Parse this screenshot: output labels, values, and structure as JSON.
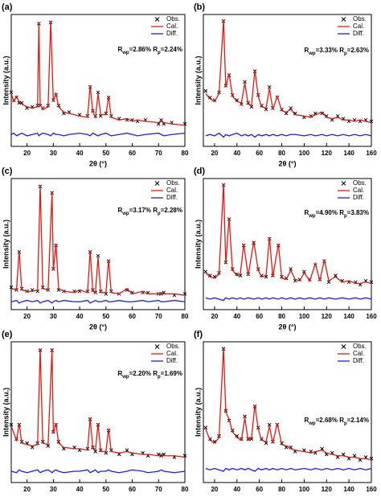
{
  "chart_data": [
    {
      "type": "line",
      "panel_label": "(a)",
      "xlabel": "2θ (°)",
      "ylabel": "Intensity (a.u.)",
      "xlim": [
        14,
        80
      ],
      "xticks": [
        20,
        30,
        40,
        50,
        60,
        70,
        80
      ],
      "ylim": [
        0,
        100
      ],
      "annotation": [
        {
          "text": "R"
        },
        {
          "text": "wp",
          "sub": true
        },
        {
          "text": "=2.86% "
        },
        {
          "text": "R"
        },
        {
          "text": "p",
          "sub": true
        },
        {
          "text": "=2.24%"
        }
      ],
      "x": [
        14,
        15,
        16,
        17,
        18,
        20,
        22,
        24,
        24.5,
        25,
        26,
        28,
        29,
        30,
        31,
        32,
        34,
        36,
        40,
        43,
        44,
        45,
        46,
        47,
        48,
        50,
        51,
        52,
        55,
        58,
        60,
        62,
        65,
        70,
        71,
        72,
        75,
        80
      ],
      "series": [
        {
          "name": "Obs.",
          "color": "#000000",
          "marker": "x",
          "values": [
            41,
            35,
            37,
            33,
            33,
            29,
            30,
            31,
            93,
            31,
            29,
            31,
            94,
            35,
            39,
            31,
            25,
            26,
            24,
            23,
            45,
            27,
            23,
            41,
            23,
            25,
            37,
            23,
            21,
            20,
            20,
            19,
            20,
            17,
            20,
            17,
            18,
            17
          ]
        },
        {
          "name": "Cal.",
          "color": "#e8180f",
          "values": [
            40,
            34,
            38,
            34,
            32,
            30,
            29,
            30,
            94,
            32,
            28,
            30,
            95,
            34,
            40,
            30,
            26,
            25,
            23,
            22,
            46,
            26,
            22,
            40,
            24,
            24,
            38,
            22,
            20,
            21,
            19,
            20,
            19,
            18,
            19,
            18,
            17,
            16
          ]
        },
        {
          "name": "Diff.",
          "color": "#1a1aff",
          "values": [
            9,
            10,
            8,
            9,
            10,
            8,
            9,
            10,
            8,
            9,
            10,
            9,
            8,
            10,
            9,
            9,
            8,
            9,
            10,
            9,
            8,
            10,
            9,
            8,
            9,
            10,
            9,
            8,
            9,
            10,
            9,
            8,
            9,
            10,
            9,
            8,
            9,
            10
          ]
        }
      ]
    },
    {
      "type": "line",
      "panel_label": "(b)",
      "xlabel": "2θ (°)",
      "ylabel": "Intensity (a.u.)",
      "xlim": [
        10,
        160
      ],
      "xticks": [
        20,
        40,
        60,
        80,
        100,
        120,
        140,
        160
      ],
      "ylim": [
        0,
        100
      ],
      "annotation": [
        {
          "text": "R"
        },
        {
          "text": "wp",
          "sub": true
        },
        {
          "text": "=3.33% "
        },
        {
          "text": "R"
        },
        {
          "text": "p",
          "sub": true
        },
        {
          "text": "=2.63%"
        }
      ],
      "x": [
        12,
        16,
        20,
        24,
        28,
        30,
        33,
        36,
        40,
        44,
        47,
        50,
        53,
        56,
        59,
        62,
        66,
        69,
        72,
        76,
        80,
        84,
        88,
        92,
        100,
        106,
        110,
        116,
        120,
        125,
        130,
        135,
        140,
        145,
        150,
        155,
        160
      ],
      "series": [
        {
          "name": "Obs.",
          "color": "#000000",
          "marker": "x",
          "values": [
            42,
            37,
            35,
            41,
            95,
            46,
            54,
            39,
            35,
            32,
            49,
            33,
            30,
            57,
            39,
            31,
            28,
            45,
            29,
            37,
            28,
            25,
            29,
            25,
            22,
            23,
            25,
            25,
            23,
            20,
            23,
            21,
            19,
            20,
            19,
            20,
            19
          ]
        },
        {
          "name": "Cal.",
          "color": "#e8180f",
          "values": [
            40,
            36,
            34,
            40,
            96,
            45,
            55,
            38,
            34,
            33,
            48,
            32,
            31,
            58,
            38,
            30,
            29,
            44,
            28,
            38,
            27,
            26,
            28,
            24,
            23,
            22,
            24,
            26,
            22,
            21,
            22,
            20,
            20,
            19,
            20,
            19,
            18
          ]
        },
        {
          "name": "Diff.",
          "color": "#1a1aff",
          "values": [
            8,
            9,
            8,
            10,
            7,
            9,
            8,
            9,
            10,
            8,
            9,
            8,
            9,
            7,
            9,
            8,
            9,
            8,
            9,
            8,
            9,
            8,
            9,
            9,
            8,
            9,
            8,
            9,
            8,
            9,
            8,
            9,
            8,
            9,
            8,
            9,
            8
          ]
        }
      ]
    },
    {
      "type": "line",
      "panel_label": "(c)",
      "xlabel": "2θ (°)",
      "ylabel": "Intensity (a.u.)",
      "xlim": [
        14,
        80
      ],
      "xticks": [
        20,
        30,
        40,
        50,
        60,
        70,
        80
      ],
      "ylim": [
        0,
        100
      ],
      "annotation": [
        {
          "text": "R"
        },
        {
          "text": "wp",
          "sub": true
        },
        {
          "text": "=3.17% "
        },
        {
          "text": "R"
        },
        {
          "text": "p",
          "sub": true
        },
        {
          "text": "=2.28%"
        }
      ],
      "x": [
        14,
        16,
        17,
        18,
        20,
        22,
        24,
        25,
        26,
        28,
        29.5,
        30,
        31,
        32,
        34,
        38,
        40,
        43,
        44,
        45,
        46,
        47,
        48,
        50,
        51,
        52,
        55,
        58,
        60,
        64,
        66,
        70,
        71,
        72,
        76,
        80
      ],
      "series": [
        {
          "name": "Obs.",
          "color": "#000000",
          "marker": "x",
          "values": [
            17,
            15,
            44,
            16,
            14,
            15,
            14,
            94,
            17,
            15,
            89,
            31,
            49,
            15,
            14,
            14,
            14,
            14,
            44,
            15,
            13,
            41,
            14,
            12,
            37,
            14,
            12,
            15,
            13,
            13,
            13,
            12,
            12,
            13,
            11,
            12
          ]
        },
        {
          "name": "Cal.",
          "color": "#e8180f",
          "values": [
            16,
            15,
            45,
            15,
            14,
            14,
            15,
            95,
            16,
            15,
            90,
            30,
            50,
            16,
            14,
            13,
            15,
            13,
            45,
            14,
            13,
            40,
            13,
            13,
            38,
            13,
            12,
            16,
            12,
            14,
            12,
            12,
            13,
            12,
            12,
            11
          ]
        },
        {
          "name": "Diff.",
          "color": "#1a1aff",
          "values": [
            6,
            7,
            5,
            6,
            7,
            6,
            7,
            5,
            6,
            7,
            5,
            6,
            7,
            6,
            7,
            6,
            6,
            7,
            5,
            6,
            7,
            6,
            6,
            7,
            6,
            6,
            7,
            6,
            6,
            7,
            6,
            7,
            6,
            6,
            7,
            6
          ]
        }
      ]
    },
    {
      "type": "line",
      "panel_label": "(d)",
      "xlabel": "2θ (°)",
      "ylabel": "Intensity (a.u.)",
      "xlim": [
        10,
        160
      ],
      "xticks": [
        20,
        40,
        60,
        80,
        100,
        120,
        140,
        160
      ],
      "ylim": [
        0,
        100
      ],
      "annotation": [
        {
          "text": "R"
        },
        {
          "text": "wp",
          "sub": true
        },
        {
          "text": "=4.90% "
        },
        {
          "text": "R"
        },
        {
          "text": "p",
          "sub": true
        },
        {
          "text": "=3.83%"
        }
      ],
      "x": [
        12,
        16,
        20,
        24,
        28,
        30,
        33,
        36,
        40,
        43,
        46,
        50,
        55,
        59,
        62,
        66,
        69,
        72,
        77,
        80,
        84,
        88,
        92,
        96,
        100,
        105,
        110,
        114,
        118,
        122,
        128,
        134,
        140,
        146,
        150,
        155,
        160
      ],
      "series": [
        {
          "name": "Obs.",
          "color": "#000000",
          "marker": "x",
          "values": [
            29,
            26,
            25,
            28,
            95,
            36,
            69,
            31,
            27,
            26,
            49,
            27,
            51,
            31,
            26,
            25,
            54,
            26,
            49,
            25,
            24,
            31,
            22,
            23,
            29,
            23,
            34,
            23,
            37,
            21,
            26,
            22,
            21,
            21,
            19,
            22,
            21
          ]
        },
        {
          "name": "Cal.",
          "color": "#e8180f",
          "values": [
            28,
            25,
            24,
            27,
            96,
            35,
            70,
            30,
            26,
            27,
            50,
            26,
            52,
            30,
            25,
            26,
            55,
            25,
            50,
            24,
            23,
            30,
            23,
            22,
            28,
            22,
            35,
            22,
            38,
            22,
            25,
            21,
            22,
            20,
            20,
            21,
            20
          ]
        },
        {
          "name": "Diff.",
          "color": "#1a1aff",
          "values": [
            9,
            8,
            9,
            8,
            7,
            9,
            8,
            9,
            8,
            9,
            8,
            9,
            8,
            9,
            8,
            9,
            8,
            9,
            8,
            9,
            8,
            9,
            8,
            9,
            8,
            9,
            8,
            9,
            8,
            9,
            8,
            9,
            8,
            9,
            8,
            9,
            8
          ]
        }
      ]
    },
    {
      "type": "line",
      "panel_label": "(e)",
      "xlabel": "2θ (°)",
      "ylabel": "Intensity (a.u.)",
      "xlim": [
        14,
        80
      ],
      "xticks": [
        20,
        30,
        40,
        50,
        60,
        70,
        80
      ],
      "ylim": [
        0,
        100
      ],
      "annotation": [
        {
          "text": "R"
        },
        {
          "text": "wp",
          "sub": true
        },
        {
          "text": "=2.20% "
        },
        {
          "text": "R"
        },
        {
          "text": "p",
          "sub": true
        },
        {
          "text": "=1.69%"
        }
      ],
      "x": [
        14,
        16,
        17,
        18,
        20,
        22,
        24,
        25,
        26,
        28,
        29.5,
        30,
        31,
        32,
        34,
        38,
        40,
        43,
        44,
        45,
        46,
        47,
        48,
        50,
        51,
        52,
        55,
        58,
        60,
        64,
        66,
        70,
        71,
        72,
        76,
        80
      ],
      "series": [
        {
          "name": "Obs.",
          "color": "#000000",
          "marker": "x",
          "values": [
            41,
            31,
            41,
            29,
            28,
            25,
            28,
            94,
            29,
            26,
            94,
            36,
            41,
            29,
            24,
            25,
            23,
            24,
            45,
            25,
            22,
            41,
            23,
            21,
            37,
            23,
            20,
            23,
            20,
            21,
            19,
            20,
            19,
            20,
            18,
            19
          ]
        },
        {
          "name": "Cal.",
          "color": "#e8180f",
          "values": [
            40,
            30,
            42,
            28,
            27,
            26,
            27,
            95,
            28,
            27,
            95,
            35,
            42,
            28,
            25,
            24,
            24,
            23,
            46,
            24,
            23,
            42,
            22,
            22,
            38,
            22,
            21,
            22,
            21,
            20,
            20,
            19,
            20,
            19,
            19,
            18
          ]
        },
        {
          "name": "Diff.",
          "color": "#1a1aff",
          "values": [
            8,
            7,
            9,
            8,
            7,
            8,
            9,
            7,
            8,
            9,
            7,
            8,
            9,
            8,
            7,
            8,
            8,
            9,
            7,
            8,
            9,
            7,
            8,
            8,
            9,
            8,
            7,
            8,
            9,
            8,
            7,
            8,
            9,
            8,
            7,
            8
          ]
        }
      ]
    },
    {
      "type": "line",
      "panel_label": "(f)",
      "xlabel": "2θ (°)",
      "ylabel": "Intensity (a.u.)",
      "xlim": [
        10,
        160
      ],
      "xticks": [
        20,
        40,
        60,
        80,
        100,
        120,
        140,
        160
      ],
      "ylim": [
        0,
        100
      ],
      "annotation": [
        {
          "text": "R"
        },
        {
          "text": "wp",
          "sub": true
        },
        {
          "text": "=2.68% "
        },
        {
          "text": "R"
        },
        {
          "text": "p",
          "sub": true
        },
        {
          "text": "=2.14%"
        }
      ],
      "x": [
        12,
        16,
        20,
        24,
        28,
        30,
        33,
        36,
        40,
        44,
        47,
        50,
        53,
        56,
        59,
        62,
        66,
        69,
        72,
        76,
        80,
        84,
        88,
        92,
        100,
        106,
        110,
        116,
        120,
        125,
        130,
        135,
        140,
        145,
        150,
        155,
        160
      ],
      "series": [
        {
          "name": "Obs.",
          "color": "#000000",
          "marker": "x",
          "values": [
            39,
            31,
            29,
            33,
            95,
            51,
            44,
            37,
            33,
            31,
            47,
            31,
            31,
            54,
            39,
            31,
            28,
            41,
            29,
            41,
            28,
            25,
            25,
            22,
            23,
            22,
            21,
            24,
            20,
            21,
            18,
            20,
            17,
            19,
            16,
            18,
            17
          ]
        },
        {
          "name": "Cal.",
          "color": "#e8180f",
          "values": [
            38,
            30,
            28,
            32,
            96,
            50,
            45,
            36,
            32,
            30,
            46,
            30,
            32,
            55,
            38,
            30,
            29,
            40,
            28,
            42,
            27,
            26,
            24,
            23,
            22,
            21,
            22,
            23,
            21,
            20,
            19,
            19,
            18,
            18,
            17,
            17,
            16
          ]
        },
        {
          "name": "Diff.",
          "color": "#1a1aff",
          "values": [
            10,
            9,
            10,
            9,
            8,
            10,
            9,
            10,
            9,
            10,
            9,
            10,
            9,
            8,
            10,
            9,
            10,
            9,
            10,
            9,
            10,
            9,
            10,
            9,
            10,
            9,
            10,
            9,
            10,
            9,
            10,
            9,
            10,
            9,
            10,
            9,
            10
          ]
        }
      ]
    }
  ]
}
